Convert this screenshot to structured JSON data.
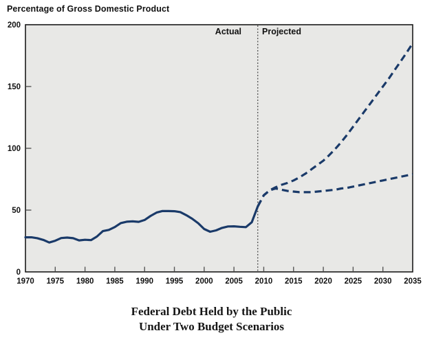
{
  "labels": {
    "axis_unit": "Percentage of Gross Domestic Product",
    "actual": "Actual",
    "projected": "Projected"
  },
  "title": {
    "line1": "Federal Debt Held by the Public",
    "line2": "Under Two Budget Scenarios"
  },
  "colors": {
    "line": "#1a3a69",
    "plot_bg": "#e8e8e6",
    "frame": "#1a1a1a",
    "tick": "#555555",
    "divider": "#222222"
  },
  "chart_data": {
    "type": "line",
    "title": "Federal Debt Held by the Public Under Two Budget Scenarios",
    "xlabel": "",
    "ylabel": "Percentage of Gross Domestic Product",
    "xlim": [
      1970,
      2035
    ],
    "ylim": [
      0,
      200
    ],
    "x_ticks": [
      1970,
      1975,
      1980,
      1985,
      1990,
      1995,
      2000,
      2005,
      2010,
      2015,
      2020,
      2025,
      2030,
      2035
    ],
    "y_ticks": [
      0,
      50,
      100,
      150,
      200
    ],
    "grid": false,
    "legend": "none",
    "divider_year": 2009,
    "zone_labels": [
      "Actual",
      "Projected"
    ],
    "series": [
      {
        "name": "Actual",
        "style": "solid",
        "start_year": 1970,
        "values": [
          28,
          28,
          27.3,
          25.9,
          23.8,
          25.2,
          27.4,
          27.8,
          27.3,
          25.5,
          26,
          25.7,
          28.6,
          33,
          34,
          36.3,
          39.5,
          40.6,
          40.9,
          40.5,
          42,
          45.3,
          48,
          49.3,
          49.2,
          49.1,
          48.4,
          45.9,
          43,
          39.4,
          34.7,
          32.5,
          33.6,
          35.6,
          36.8,
          36.9,
          36.5,
          36.2,
          40.2,
          53
        ]
      },
      {
        "name": "Projected - upper dashed scenario",
        "style": "dashed",
        "start_year": 2009,
        "values": [
          53,
          62,
          66,
          68.5,
          70.5,
          72,
          74,
          76.5,
          79.5,
          83,
          86.5,
          90,
          94.5,
          99.5,
          105,
          111,
          117.5,
          124,
          130.5,
          137,
          143.5,
          150,
          156.5,
          163.5,
          170.5,
          177.5,
          185
        ]
      },
      {
        "name": "Projected - lower dashed scenario",
        "style": "dashed",
        "start_year": 2009,
        "values": [
          53,
          62,
          66,
          67.5,
          66.5,
          65.5,
          65,
          64.5,
          64.5,
          64.5,
          65,
          65.5,
          66,
          66.5,
          67.5,
          68,
          69,
          70,
          71,
          72,
          73,
          74,
          75,
          76,
          77,
          78,
          79
        ]
      }
    ]
  }
}
